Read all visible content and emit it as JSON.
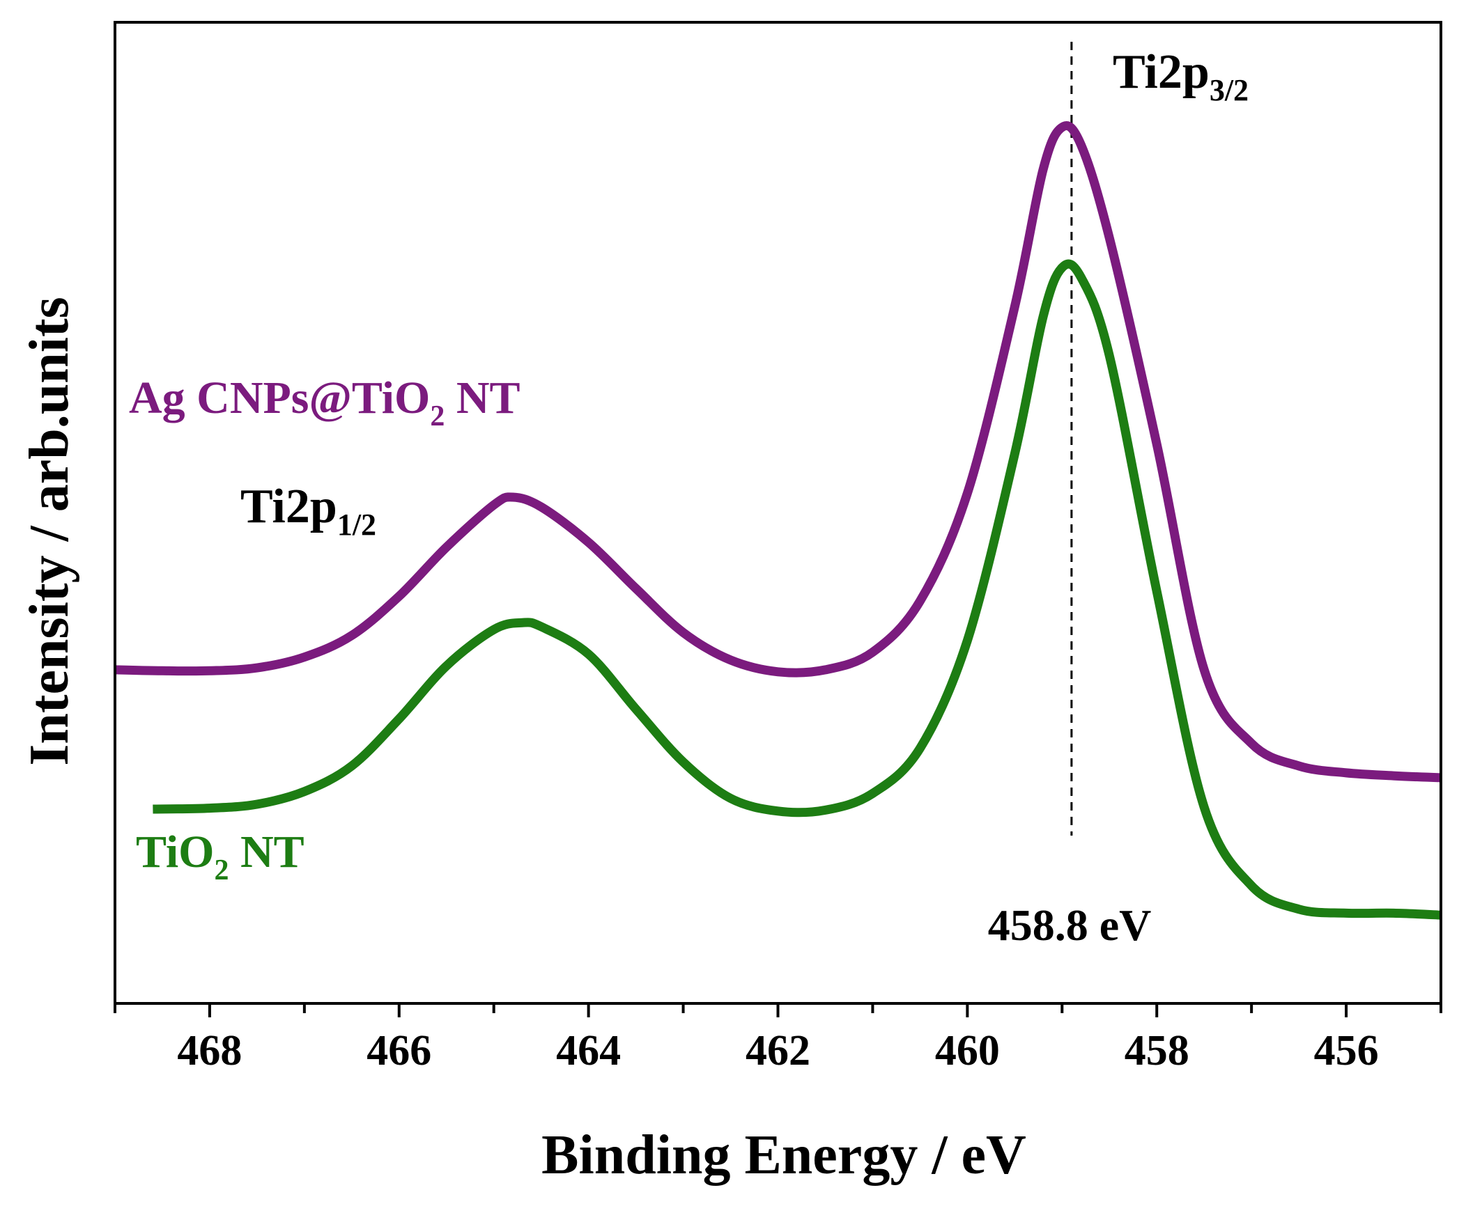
{
  "chart_data": {
    "type": "line",
    "xlabel": "Binding Energy / eV",
    "ylabel": "Intensity / arb.units",
    "xlim": [
      469,
      455
    ],
    "x_reversed": true,
    "ylim": [
      0,
      100
    ],
    "y_ticks_shown": false,
    "x_ticks": [
      468,
      466,
      464,
      462,
      460,
      458,
      456
    ],
    "x_tick_labels": [
      "468",
      "466",
      "464",
      "462",
      "460",
      "458",
      "456"
    ],
    "grid": false,
    "series": [
      {
        "name": "Ag CNPs@TiO",
        "name_subscript": "2",
        "name_suffix": " NT",
        "color": "#7b1b7e",
        "points": [
          [
            469.0,
            34.0
          ],
          [
            468.5,
            33.9
          ],
          [
            468.0,
            33.9
          ],
          [
            467.5,
            34.2
          ],
          [
            467.0,
            35.3
          ],
          [
            466.5,
            37.5
          ],
          [
            466.0,
            41.5
          ],
          [
            465.5,
            46.5
          ],
          [
            465.0,
            50.8
          ],
          [
            464.8,
            51.6
          ],
          [
            464.5,
            50.6
          ],
          [
            464.0,
            47.0
          ],
          [
            463.5,
            42.3
          ],
          [
            463.0,
            37.8
          ],
          [
            462.5,
            35.0
          ],
          [
            462.0,
            33.8
          ],
          [
            461.5,
            34.0
          ],
          [
            461.0,
            35.8
          ],
          [
            460.5,
            41.0
          ],
          [
            460.0,
            52.0
          ],
          [
            459.5,
            71.0
          ],
          [
            459.2,
            85.0
          ],
          [
            459.0,
            89.3
          ],
          [
            458.8,
            87.5
          ],
          [
            458.5,
            78.0
          ],
          [
            458.0,
            57.0
          ],
          [
            457.5,
            34.0
          ],
          [
            457.0,
            26.5
          ],
          [
            456.5,
            24.2
          ],
          [
            456.0,
            23.5
          ],
          [
            455.5,
            23.2
          ],
          [
            455.0,
            23.0
          ]
        ]
      },
      {
        "name": "TiO",
        "name_subscript": "2",
        "name_suffix": " NT",
        "color": "#1d7d13",
        "points": [
          [
            468.6,
            19.8
          ],
          [
            468.0,
            19.9
          ],
          [
            467.5,
            20.3
          ],
          [
            467.0,
            21.6
          ],
          [
            466.5,
            24.2
          ],
          [
            466.0,
            29.0
          ],
          [
            465.5,
            34.4
          ],
          [
            465.0,
            38.1
          ],
          [
            464.7,
            38.8
          ],
          [
            464.5,
            38.4
          ],
          [
            464.0,
            35.6
          ],
          [
            463.5,
            30.0
          ],
          [
            463.0,
            24.6
          ],
          [
            462.5,
            20.9
          ],
          [
            462.0,
            19.6
          ],
          [
            461.5,
            19.7
          ],
          [
            461.0,
            21.4
          ],
          [
            460.5,
            26.0
          ],
          [
            460.0,
            37.0
          ],
          [
            459.5,
            56.0
          ],
          [
            459.2,
            70.0
          ],
          [
            459.0,
            75.0
          ],
          [
            458.8,
            74.0
          ],
          [
            458.5,
            66.0
          ],
          [
            458.0,
            42.0
          ],
          [
            457.5,
            20.0
          ],
          [
            457.0,
            12.0
          ],
          [
            456.5,
            9.6
          ],
          [
            456.0,
            9.2
          ],
          [
            455.5,
            9.2
          ],
          [
            455.0,
            9.0
          ]
        ]
      }
    ],
    "reference_line": {
      "x": 458.9,
      "style": "dashed"
    },
    "annotations": {
      "peak_right_main": "Ti2p",
      "peak_right_sub": "3/2",
      "peak_left_main": "Ti2p",
      "peak_left_sub": "1/2",
      "energy_label": "458.8 eV"
    }
  }
}
